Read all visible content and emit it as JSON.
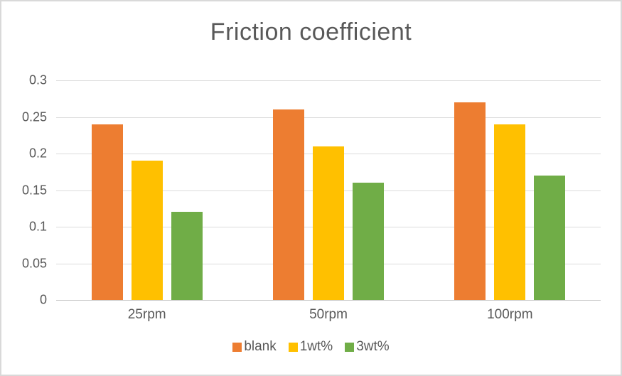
{
  "chart_data": {
    "type": "bar",
    "title": "Friction coefficient",
    "categories": [
      "25rpm",
      "50rpm",
      "100rpm"
    ],
    "series": [
      {
        "name": "blank",
        "color": "#ED7D31",
        "values": [
          0.24,
          0.26,
          0.27
        ]
      },
      {
        "name": "1wt%",
        "color": "#FFC000",
        "values": [
          0.19,
          0.21,
          0.24
        ]
      },
      {
        "name": "3wt%",
        "color": "#70AD47",
        "values": [
          0.12,
          0.16,
          0.17
        ]
      }
    ],
    "xlabel": "",
    "ylabel": "",
    "ylim": [
      0,
      0.3
    ],
    "ytick_step": 0.05,
    "yticks": [
      "0.3",
      "0.25",
      "0.2",
      "0.15",
      "0.1",
      "0.05",
      "0"
    ],
    "grid": true,
    "legend_position": "bottom",
    "colors": {
      "title_text": "#595959",
      "axis_text": "#595959",
      "gridline": "#DCDCDC",
      "axis_line": "#C8C8C8",
      "frame_border": "#D9D9D9",
      "background": "#FFFFFF"
    }
  }
}
